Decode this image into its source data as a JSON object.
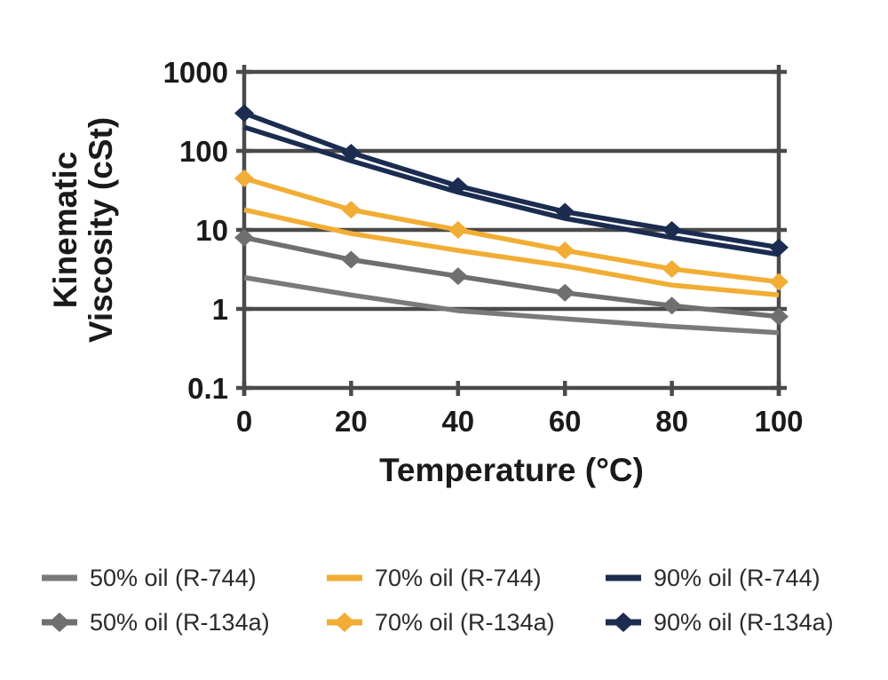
{
  "chart_data": {
    "type": "line",
    "title": "",
    "xlabel": "Temperature (°C)",
    "ylabel": "Kinematic Viscosity (cSt)",
    "y_label_lines": [
      "Kinematic",
      "Viscosity (cSt)"
    ],
    "x": [
      0,
      20,
      40,
      60,
      80,
      100
    ],
    "x_tick_labels": [
      "0",
      "20",
      "40",
      "60",
      "80",
      "100"
    ],
    "y_ticks": [
      {
        "label": "1000",
        "value": 1000
      },
      {
        "label": "100",
        "value": 100
      },
      {
        "label": "10",
        "value": 10
      },
      {
        "label": "1",
        "value": 1
      },
      {
        "label": "0.1",
        "value": 0.1
      }
    ],
    "xlim": [
      0,
      100
    ],
    "ylim": [
      0.1,
      1000
    ],
    "y_scale": "log",
    "grid": "horizontal-decades",
    "grid_color": "#4a4a4a",
    "text_color": "#1a1a1a",
    "legend_position": "bottom",
    "series": [
      {
        "name": "50% oil (R-744)",
        "color": "#7a7a7a",
        "marker": "none",
        "values": [
          2.5,
          1.5,
          0.95,
          0.75,
          0.6,
          0.5
        ]
      },
      {
        "name": "70% oil (R-744)",
        "color": "#f1ad34",
        "marker": "none",
        "values": [
          18,
          9,
          5.5,
          3.5,
          2.0,
          1.5
        ]
      },
      {
        "name": "90% oil (R-744)",
        "color": "#1b2c50",
        "marker": "none",
        "values": [
          200,
          75,
          30,
          14,
          8,
          4.9
        ]
      },
      {
        "name": "50% oil (R-134a)",
        "color": "#6f6f6f",
        "marker": "diamond",
        "values": [
          8,
          4.2,
          2.6,
          1.6,
          1.1,
          0.8
        ]
      },
      {
        "name": "70% oil (R-134a)",
        "color": "#f1ad34",
        "marker": "diamond",
        "values": [
          45,
          18,
          10,
          5.5,
          3.2,
          2.2
        ]
      },
      {
        "name": "90% oil (R-134a)",
        "color": "#1b2c50",
        "marker": "diamond",
        "values": [
          300,
          95,
          36,
          17,
          10,
          6
        ]
      }
    ]
  }
}
